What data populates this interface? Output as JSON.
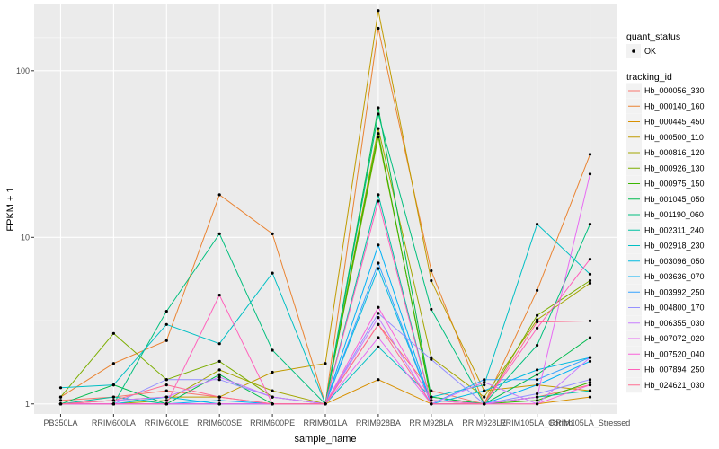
{
  "chart_data": {
    "type": "line",
    "xlabel": "sample_name",
    "ylabel": "FPKM + 1",
    "y_scale": "log10",
    "ylim": [
      0.87,
      250
    ],
    "y_ticks": [
      1,
      10,
      100
    ],
    "grid": true,
    "legend_position": "right",
    "categories": [
      "PB350LA",
      "RRIM600LA",
      "RRIM600LE",
      "RRIM600SE",
      "RRIM600PE",
      "RRIM901LA",
      "RRIM928BA",
      "RRIM928LA",
      "RRIM928LE",
      "RRIM105LA_Control",
      "RRIM105LA_Stressed"
    ],
    "quant_status": {
      "title": "quant_status",
      "entries": [
        "OK"
      ]
    },
    "legend_title": "tracking_id",
    "series": [
      {
        "name": "Hb_000056_330",
        "color": "#F8766D",
        "values": [
          1.05,
          1.1,
          1.2,
          1.1,
          1.0,
          1.0,
          3.0,
          1.2,
          1.0,
          1.1,
          1.3
        ]
      },
      {
        "name": "Hb_000140_160",
        "color": "#EA8331",
        "values": [
          1.1,
          1.75,
          2.4,
          18.0,
          10.5,
          1.0,
          180.0,
          6.3,
          1.0,
          4.8,
          31.5
        ]
      },
      {
        "name": "Hb_000445_450",
        "color": "#D89000",
        "values": [
          1.0,
          1.0,
          1.0,
          1.0,
          1.0,
          1.0,
          1.4,
          1.0,
          1.0,
          1.0,
          1.1
        ]
      },
      {
        "name": "Hb_000500_110",
        "color": "#C09B00",
        "values": [
          1.0,
          1.05,
          1.1,
          1.1,
          1.55,
          1.75,
          230.0,
          5.5,
          1.2,
          1.3,
          1.2
        ]
      },
      {
        "name": "Hb_000816_120",
        "color": "#A3A500",
        "values": [
          1.0,
          1.0,
          1.05,
          1.6,
          1.2,
          1.0,
          45.0,
          1.9,
          1.1,
          3.2,
          5.3
        ]
      },
      {
        "name": "Hb_000926_130",
        "color": "#7CAE00",
        "values": [
          1.1,
          2.65,
          1.4,
          1.8,
          1.1,
          1.0,
          40.0,
          1.1,
          1.0,
          3.4,
          5.5
        ]
      },
      {
        "name": "Hb_000975_150",
        "color": "#39B600",
        "values": [
          1.0,
          1.0,
          1.0,
          1.0,
          1.0,
          1.0,
          42.0,
          1.05,
          1.0,
          1.05,
          1.35
        ]
      },
      {
        "name": "Hb_001045_050",
        "color": "#00BB4E",
        "values": [
          1.0,
          1.3,
          1.0,
          1.5,
          1.0,
          1.0,
          60.0,
          1.1,
          1.0,
          1.5,
          2.5
        ]
      },
      {
        "name": "Hb_001190_060",
        "color": "#00BF7D",
        "values": [
          1.0,
          1.0,
          3.6,
          10.5,
          2.1,
          1.0,
          55.0,
          3.7,
          1.0,
          2.25,
          12.0
        ]
      },
      {
        "name": "Hb_002311_240",
        "color": "#00C1A3",
        "values": [
          1.0,
          1.1,
          1.0,
          1.0,
          1.0,
          1.0,
          18.0,
          1.0,
          1.0,
          1.1,
          1.2
        ]
      },
      {
        "name": "Hb_002918_230",
        "color": "#00BFC4",
        "values": [
          1.25,
          1.3,
          3.0,
          2.3,
          6.1,
          1.0,
          2.2,
          1.1,
          1.3,
          12.0,
          6.0
        ]
      },
      {
        "name": "Hb_003096_050",
        "color": "#00BAE0",
        "values": [
          1.0,
          1.0,
          1.1,
          1.0,
          1.0,
          1.0,
          6.5,
          1.0,
          1.2,
          1.6,
          1.9
        ]
      },
      {
        "name": "Hb_003636_070",
        "color": "#00B0F6",
        "values": [
          1.0,
          1.0,
          1.0,
          1.05,
          1.0,
          1.0,
          9.0,
          1.0,
          1.0,
          1.3,
          1.8
        ]
      },
      {
        "name": "Hb_003992_250",
        "color": "#35A2FF",
        "values": [
          1.0,
          1.0,
          1.0,
          1.0,
          1.0,
          1.0,
          7.0,
          1.0,
          1.4,
          1.4,
          1.9
        ]
      },
      {
        "name": "Hb_004800_170",
        "color": "#9590FF",
        "values": [
          1.0,
          1.0,
          1.4,
          1.4,
          1.1,
          1.0,
          3.5,
          1.85,
          1.0,
          1.15,
          1.4
        ]
      },
      {
        "name": "Hb_006355_030",
        "color": "#C77CFF",
        "values": [
          1.0,
          1.05,
          1.1,
          1.45,
          1.1,
          1.0,
          3.3,
          1.0,
          1.35,
          1.0,
          1.9
        ]
      },
      {
        "name": "Hb_007072_020",
        "color": "#E76BF3",
        "values": [
          1.0,
          1.0,
          1.0,
          1.0,
          1.0,
          1.0,
          2.5,
          1.0,
          1.0,
          1.1,
          24.0
        ]
      },
      {
        "name": "Hb_007520_040",
        "color": "#FA62DB",
        "values": [
          1.0,
          1.0,
          1.0,
          1.0,
          1.0,
          1.0,
          3.8,
          1.05,
          1.0,
          1.0,
          1.3
        ]
      },
      {
        "name": "Hb_007894_250",
        "color": "#FF62BC",
        "values": [
          1.0,
          1.0,
          1.0,
          4.5,
          1.0,
          1.0,
          16.5,
          1.0,
          1.0,
          2.85,
          7.4
        ]
      },
      {
        "name": "Hb_024621_030",
        "color": "#FF6C91",
        "values": [
          1.0,
          1.05,
          1.3,
          1.1,
          1.0,
          1.0,
          3.0,
          1.0,
          1.0,
          3.1,
          3.15
        ]
      }
    ]
  }
}
